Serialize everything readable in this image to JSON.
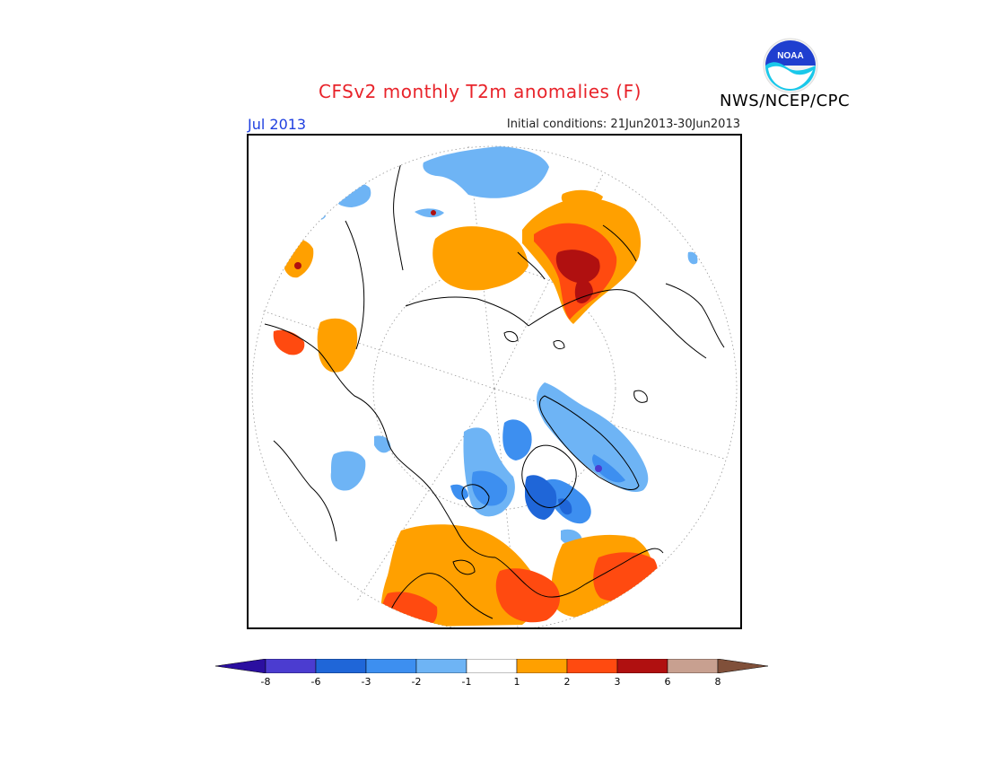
{
  "header": {
    "title": "CFSv2 monthly T2m anomalies (F)",
    "agency": "NWS/NCEP/CPC",
    "period": "Jul 2013",
    "initial_conditions": "Initial conditions: 21Jun2013-30Jun2013",
    "logo_text": "NOAA"
  },
  "legend": {
    "colors": [
      "#2b0fa0",
      "#4b3cd0",
      "#1f66d8",
      "#3d8ff0",
      "#6eb4f5",
      "#ffffff",
      "#ffa000",
      "#ff4a10",
      "#b01010",
      "#c8a090",
      "#80503a"
    ],
    "tick_labels": [
      "-8",
      "-6",
      "-3",
      "-2",
      "-1",
      "1",
      "2",
      "3",
      "6",
      "8"
    ]
  },
  "map": {
    "projection": "north polar stereographic",
    "anomaly_colors": {
      "minus1": "#6eb4f5",
      "minus2": "#3d8ff0",
      "minus3": "#1f66d8",
      "minus6": "#4b3cd0",
      "plus1": "#ffa000",
      "plus2": "#ff4a10",
      "plus3": "#b01010"
    }
  }
}
